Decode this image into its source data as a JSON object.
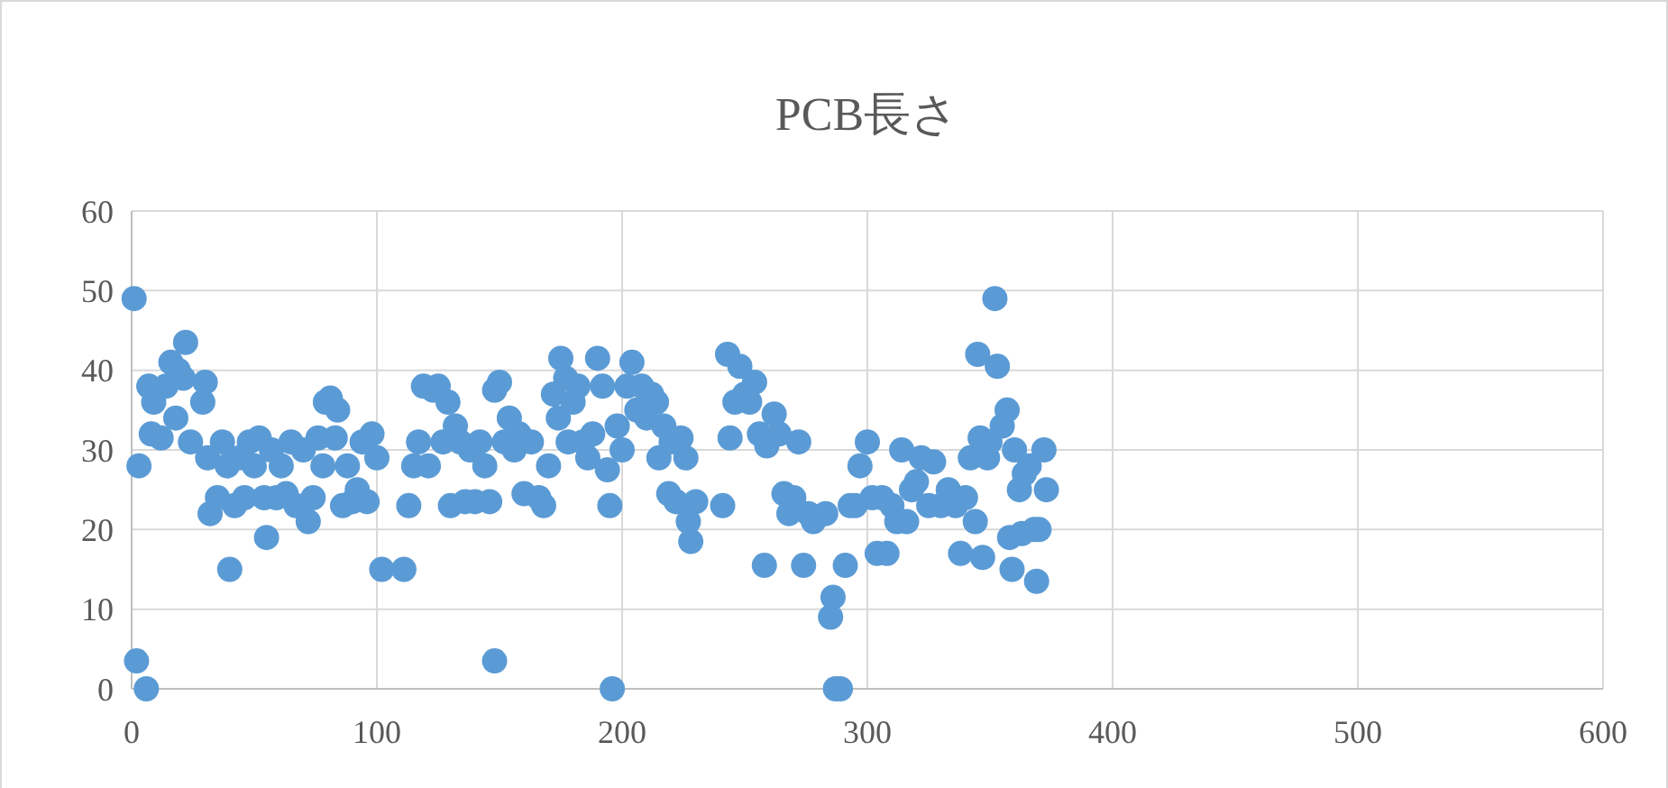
{
  "chart_data": {
    "type": "scatter",
    "title": "PCB長さ",
    "color": "#5b9bd5",
    "marker": "circle",
    "grid": true,
    "xlim": [
      0,
      600
    ],
    "xticks": [
      0,
      100,
      200,
      300,
      400,
      500,
      600
    ],
    "ylim": [
      0,
      60
    ],
    "yticks": [
      0,
      10,
      20,
      30,
      40,
      50,
      60
    ],
    "x": [
      1,
      2,
      3,
      6,
      7,
      8,
      9,
      12,
      14,
      16,
      18,
      19,
      21,
      22,
      24,
      29,
      30,
      31,
      32,
      35,
      37,
      39,
      40,
      42,
      44,
      46,
      48,
      50,
      52,
      54,
      55,
      57,
      59,
      61,
      63,
      65,
      67,
      70,
      72,
      74,
      76,
      78,
      79,
      81,
      83,
      84,
      86,
      88,
      90,
      92,
      94,
      96,
      98,
      100,
      102,
      111,
      113,
      115,
      117,
      119,
      121,
      123,
      125,
      127,
      129,
      130,
      132,
      134,
      136,
      138,
      140,
      142,
      144,
      146,
      148,
      148,
      150,
      152,
      154,
      156,
      158,
      160,
      163,
      166,
      168,
      170,
      172,
      174,
      175,
      177,
      178,
      180,
      182,
      184,
      186,
      188,
      190,
      192,
      194,
      195,
      196,
      198,
      200,
      202,
      204,
      206,
      208,
      210,
      212,
      214,
      215,
      217,
      219,
      220,
      222,
      224,
      226,
      227,
      228,
      230,
      241,
      243,
      244,
      246,
      248,
      250,
      252,
      254,
      256,
      258,
      259,
      262,
      264,
      266,
      268,
      270,
      272,
      274,
      276,
      278,
      283,
      285,
      286,
      287,
      289,
      291,
      293,
      295,
      297,
      300,
      302,
      304,
      306,
      308,
      310,
      312,
      314,
      316,
      318,
      320,
      322,
      325,
      327,
      330,
      333,
      336,
      338,
      340,
      342,
      344,
      345,
      346,
      347,
      349,
      350,
      352,
      353,
      355,
      357,
      358,
      359,
      360,
      362,
      363,
      364,
      366,
      368,
      369,
      370,
      372,
      373
    ],
    "values": [
      49,
      3.5,
      28,
      0,
      38,
      32,
      36,
      31.5,
      38,
      41,
      34,
      40,
      39,
      43.5,
      31,
      36,
      38.5,
      29,
      22,
      24,
      31,
      28,
      15,
      23,
      29,
      24,
      31,
      28,
      31.5,
      24,
      19,
      30,
      24,
      28,
      24.5,
      31,
      23,
      30,
      21,
      24,
      31.5,
      28,
      36,
      36.5,
      31.5,
      35,
      23,
      28,
      23.5,
      25,
      31,
      23.5,
      32,
      29,
      15,
      15,
      23,
      28,
      31,
      38,
      28,
      37.5,
      38,
      31,
      36,
      23,
      33,
      31,
      23.5,
      30,
      23.5,
      31,
      28,
      23.5,
      3.5,
      37.5,
      38.5,
      31,
      34,
      30,
      32,
      24.5,
      31,
      24,
      23,
      28,
      37,
      34,
      41.5,
      39,
      31,
      36,
      38,
      31,
      29,
      32,
      41.5,
      38,
      27.5,
      23,
      0,
      33,
      30,
      38,
      41,
      35,
      38,
      34,
      37,
      36,
      29,
      33,
      24.5,
      31,
      23.5,
      31.5,
      29,
      21,
      18.5,
      23.5,
      23,
      42,
      31.5,
      36,
      40.5,
      37,
      36,
      38.5,
      32,
      15.5,
      30.5,
      34.5,
      32,
      24.5,
      22,
      24,
      31,
      15.5,
      22,
      21,
      22,
      9,
      11.5,
      0,
      0,
      15.5,
      23,
      23,
      28,
      31,
      24,
      17,
      24,
      17,
      23,
      21,
      30,
      21,
      25,
      26,
      29,
      23,
      28.5,
      23,
      25,
      23,
      17,
      24,
      29,
      21,
      42,
      31.5,
      16.5,
      29,
      31,
      49,
      40.5,
      33,
      35,
      19,
      15,
      30,
      25,
      19.5,
      27,
      28,
      20,
      13.5,
      20,
      30,
      25
    ]
  }
}
